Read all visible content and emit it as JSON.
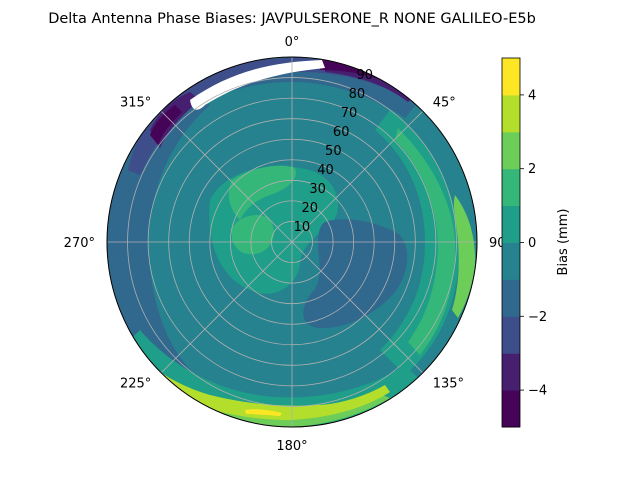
{
  "chart_data": {
    "type": "heatmap",
    "subtype": "polar-filled-contour",
    "title": "Delta Antenna Phase Biases: JAVPULSERONE_R  NONE GALILEO-E5b",
    "azimuth_tick_labels": [
      "0°",
      "45°",
      "90°",
      "135°",
      "180°",
      "225°",
      "270°",
      "315°"
    ],
    "azimuth_direction": "clockwise",
    "azimuth_zero_location": "north",
    "radial_tick_labels": [
      "10",
      "20",
      "30",
      "40",
      "50",
      "60",
      "70",
      "80",
      "90"
    ],
    "radial_range": [
      0,
      90
    ],
    "grid": true,
    "colorbar": {
      "label": "Bias (mm)",
      "ticks": [
        "4",
        "2",
        "0",
        "−2",
        "−4"
      ],
      "range": [
        -5,
        5
      ],
      "colormap": "viridis",
      "level_colors": [
        "#450457",
        "#471f70",
        "#3d4e8a",
        "#31688e",
        "#26828e",
        "#1f9e89",
        "#35b779",
        "#6dcd59",
        "#b4de2c",
        "#fde725"
      ]
    },
    "regions": [
      {
        "level": -4.5,
        "description": "upper band near north/NE edge and NW edge"
      },
      {
        "level": -3.5,
        "description": "ring band near horizon northern half"
      },
      {
        "level": -2.5,
        "description": "west edge band"
      },
      {
        "level": -1.5,
        "description": "central-east / south-east blob"
      },
      {
        "level": 0.5,
        "description": "broad middle ring"
      },
      {
        "level": 1.5,
        "description": "north-central and center-west blobs"
      },
      {
        "level": 2.5,
        "description": "east edge and south-west edge"
      },
      {
        "level": 3.5,
        "description": "south edge"
      },
      {
        "level": 4.5,
        "description": "small patch near south horizon"
      }
    ]
  }
}
